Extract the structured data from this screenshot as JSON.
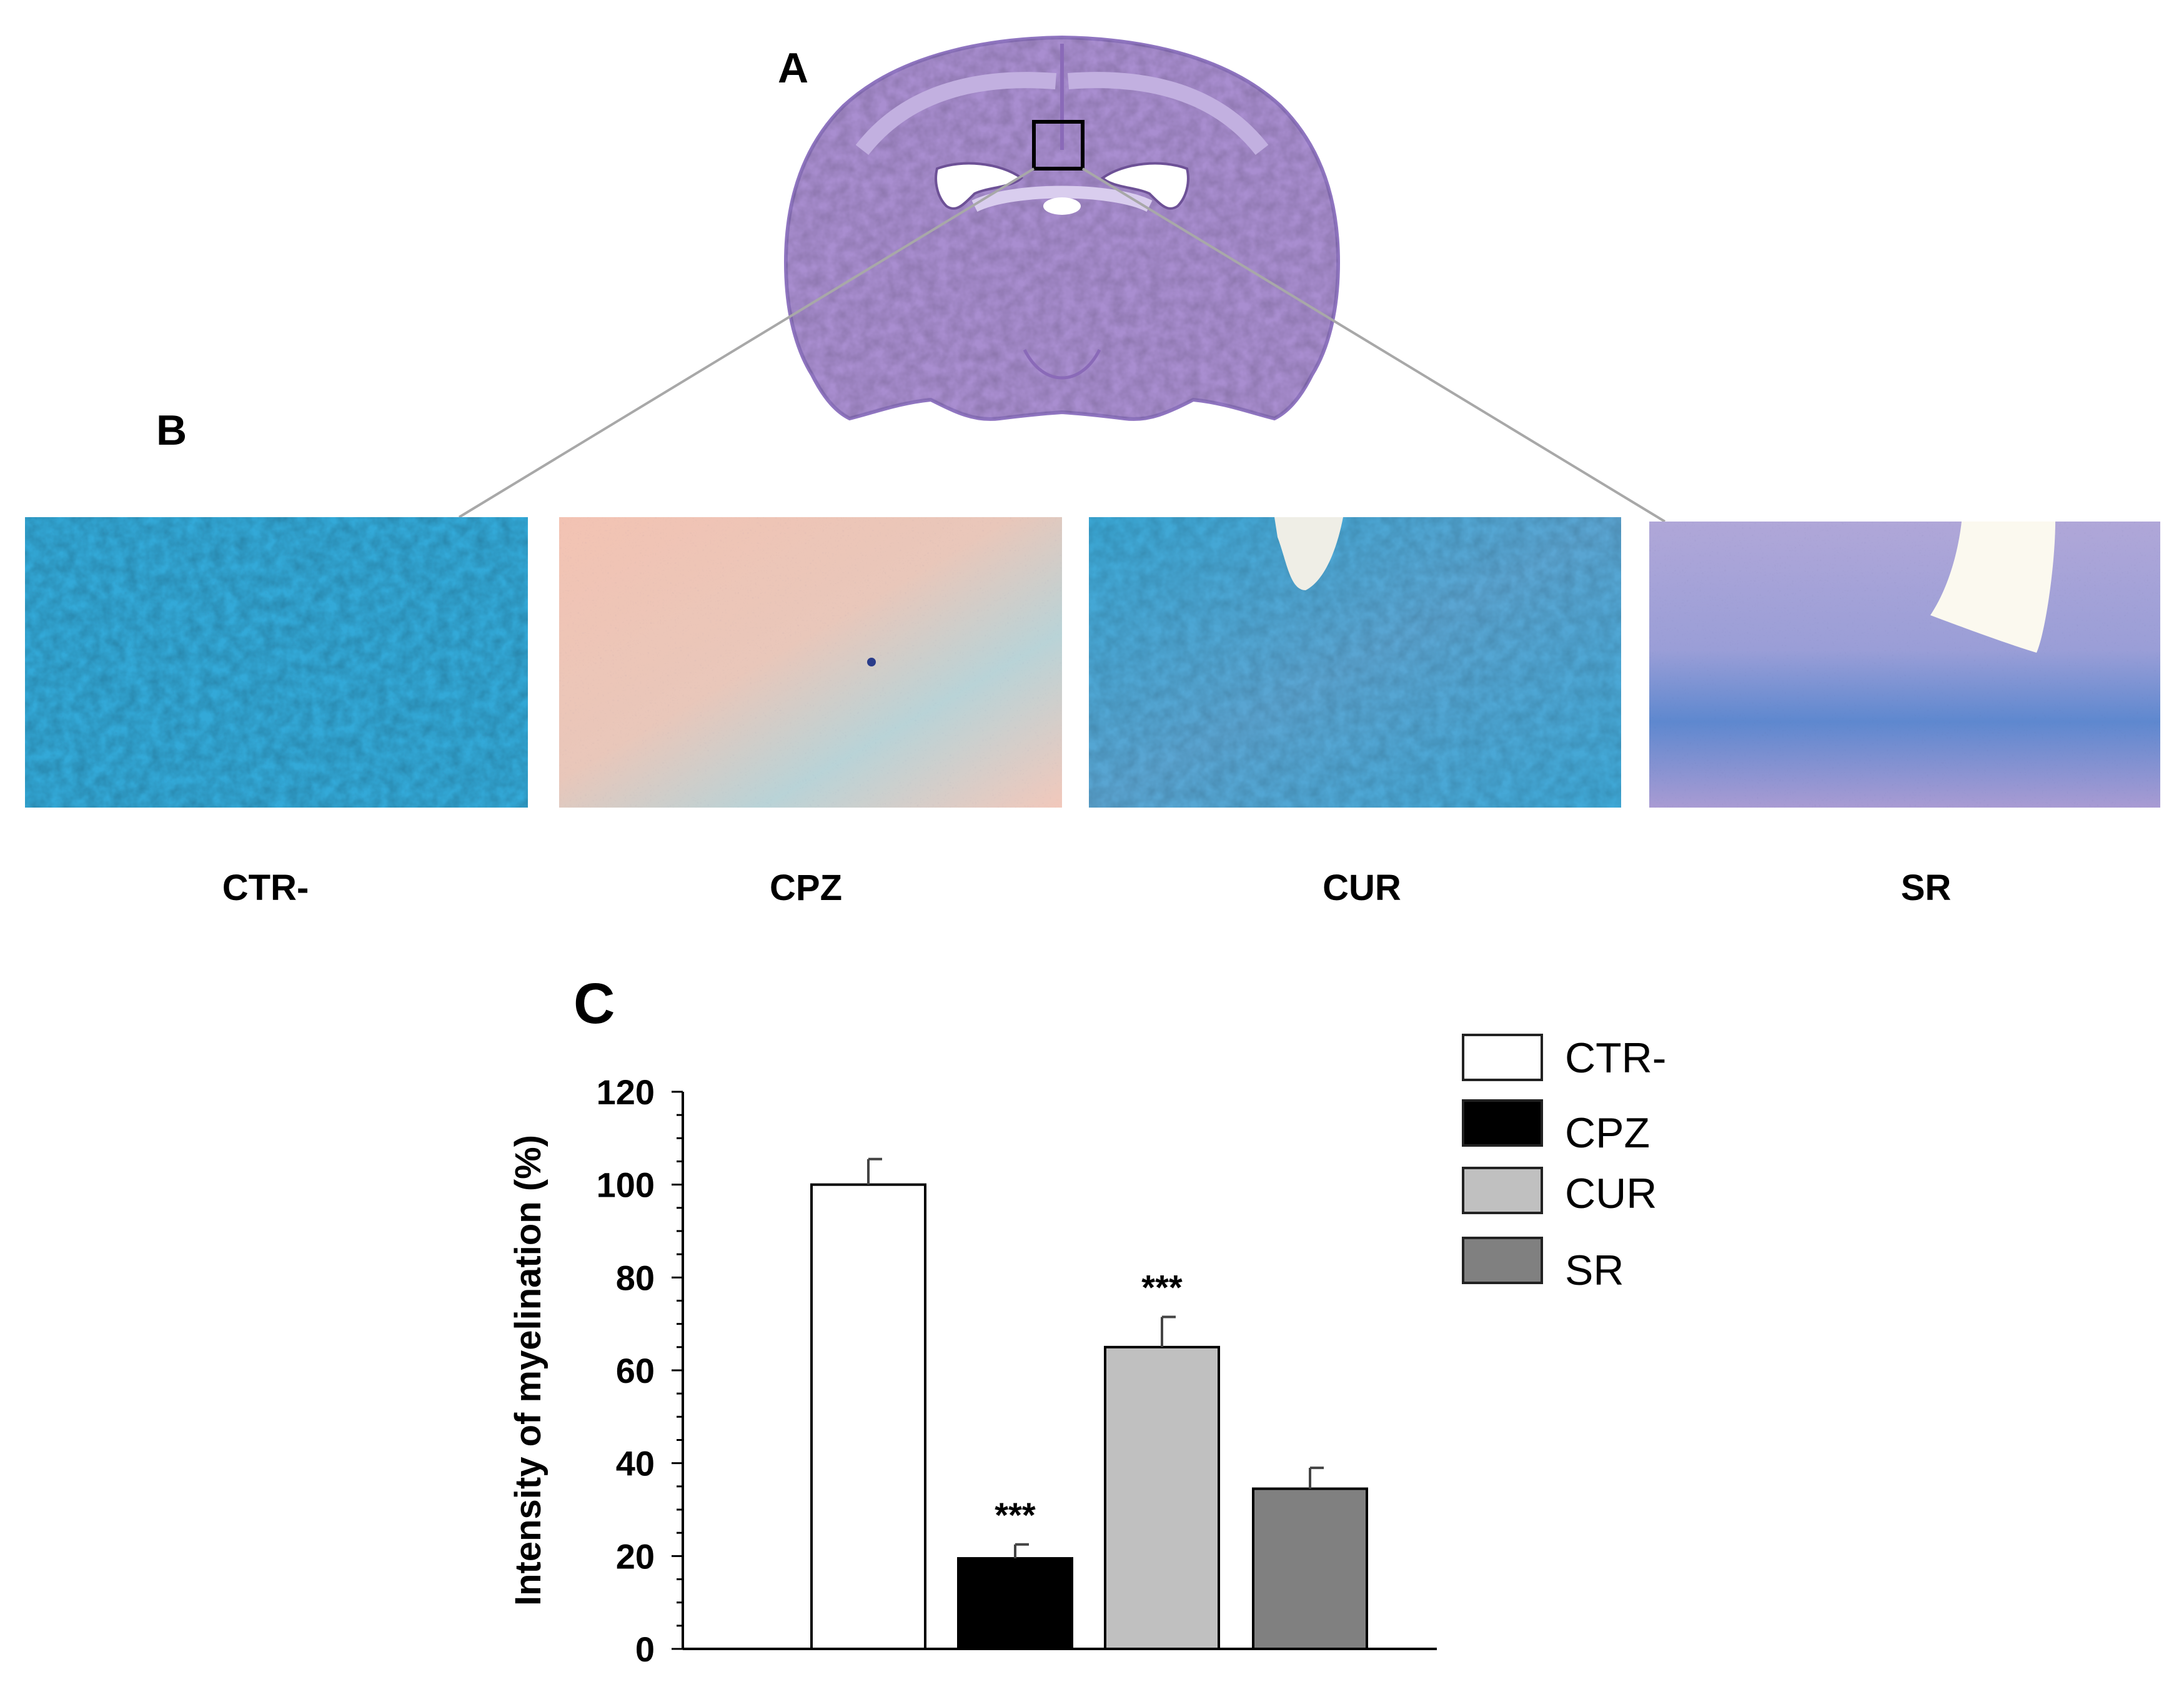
{
  "panels": {
    "a": "A",
    "b": "B",
    "c": "C"
  },
  "groups": [
    "CTR-",
    "CPZ",
    "CUR",
    "SR"
  ],
  "colors": {
    "stain_blue": "#33a9d8",
    "stain_pink": "#f1c4b6",
    "stain_purple": "#a58fcc",
    "brain_purple": "#a98ed0",
    "CTR-": "#ffffff",
    "CPZ": "#000000",
    "CUR": "#c0c0c0",
    "SR": "#808080"
  },
  "chart_data": {
    "type": "bar",
    "categories": [
      "CTR-",
      "CPZ",
      "CUR",
      "SR"
    ],
    "values": [
      100,
      19.5,
      65,
      34.5
    ],
    "errors": [
      5.5,
      3,
      6.5,
      4.5
    ],
    "annotations": [
      "",
      "***",
      "***",
      ""
    ],
    "ylabel": "Intensity of myelination (%)",
    "xlabel": "",
    "ylim": [
      0,
      120
    ],
    "yticks": [
      0,
      20,
      40,
      60,
      80,
      100,
      120
    ],
    "legend": {
      "position": "top-right",
      "entries": [
        "CTR-",
        "CPZ",
        "CUR",
        "SR"
      ]
    },
    "grid": false
  }
}
